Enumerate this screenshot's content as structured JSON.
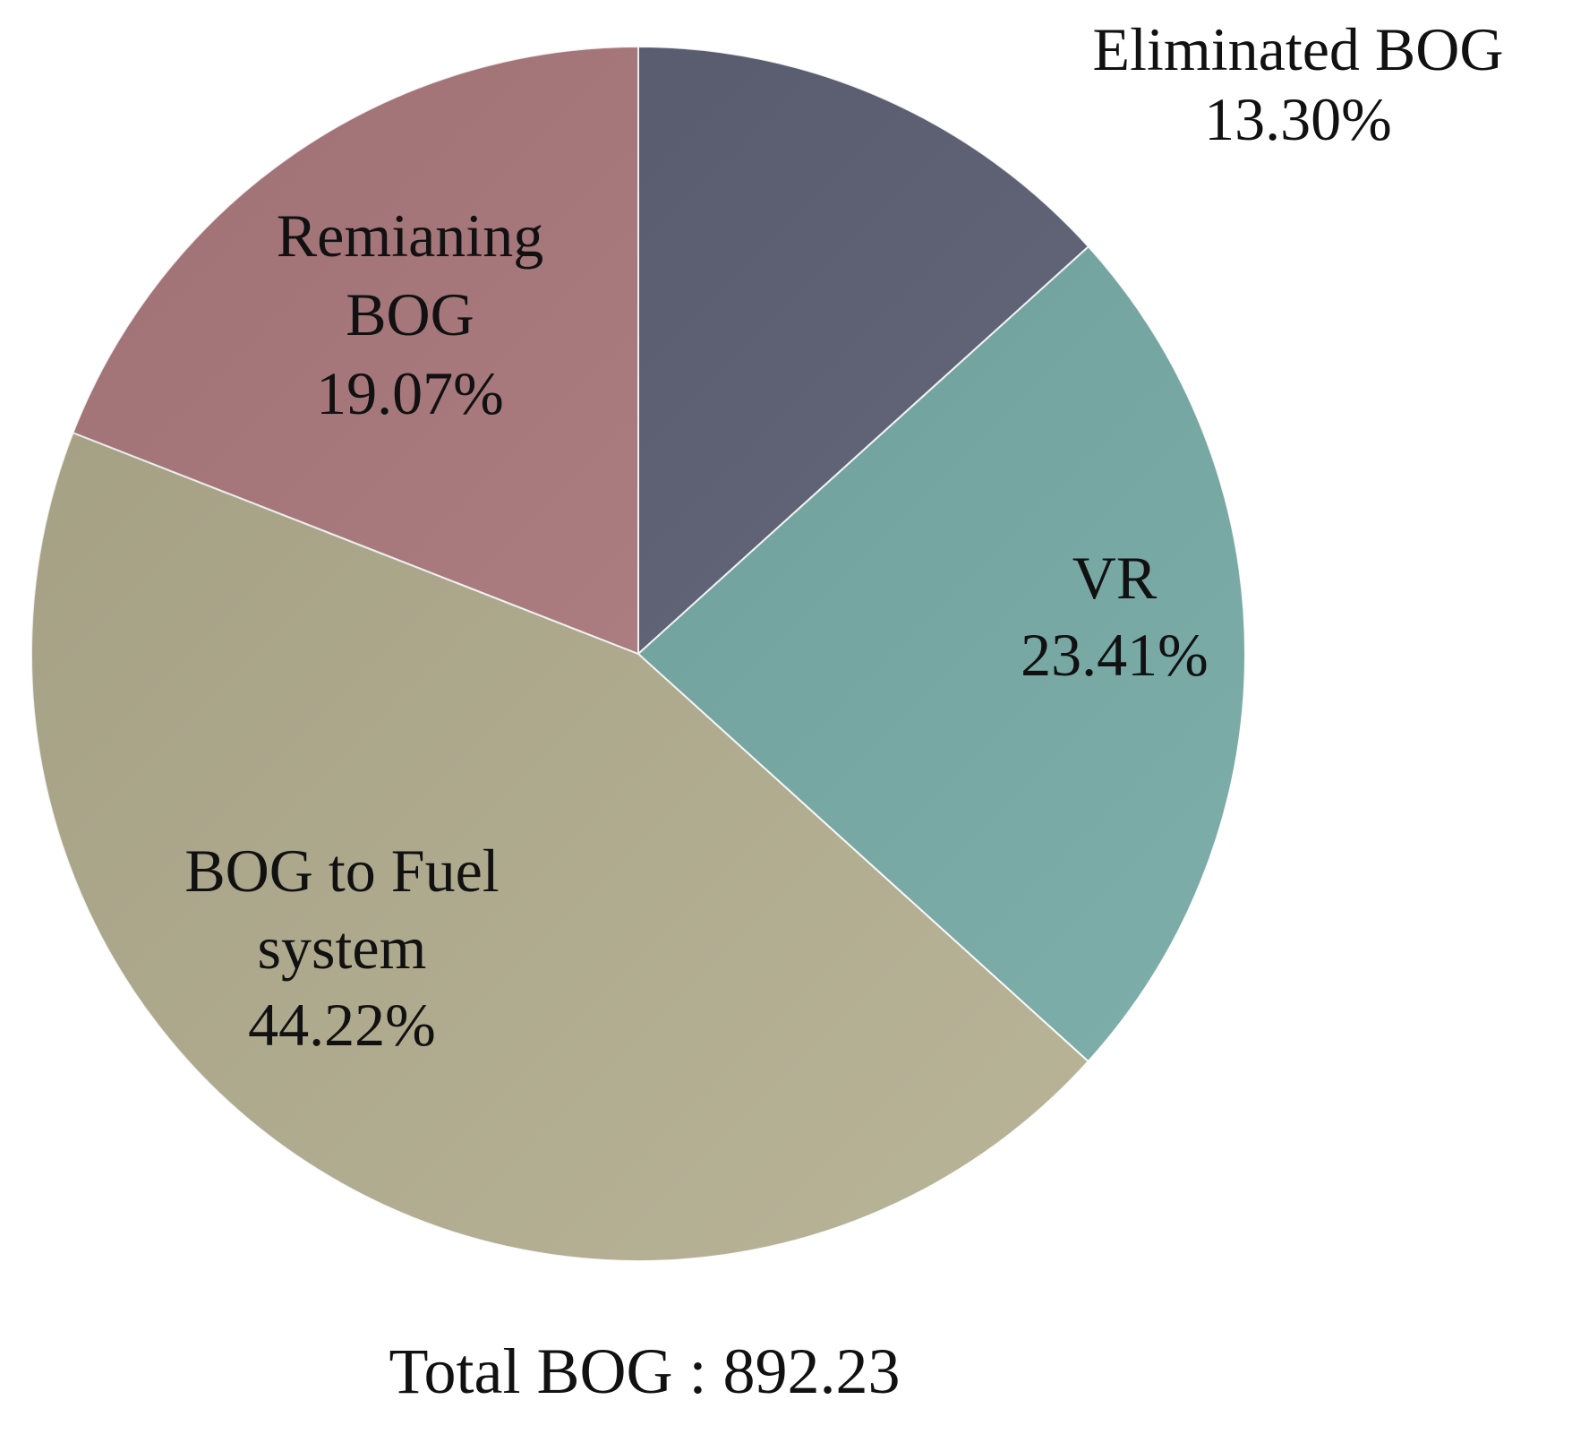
{
  "chart_data": {
    "type": "pie",
    "start_angle_deg": 0,
    "direction": "clockwise",
    "slices": [
      {
        "name": "Eliminated BOG",
        "label_lines": [
          "Eliminated BOG",
          "13.30%"
        ],
        "value": 13.3,
        "color": "#5c5f74"
      },
      {
        "name": "VR",
        "label_lines": [
          "VR",
          "23.41%"
        ],
        "value": 23.41,
        "color": "#72a8a3"
      },
      {
        "name": "BOG to Fuel system",
        "label_lines": [
          "BOG to Fuel",
          "system",
          "44.22%"
        ],
        "value": 44.22,
        "color": "#b3ae8f"
      },
      {
        "name": "Remianing BOG",
        "label_lines": [
          "Remianing",
          "BOG",
          "19.07%"
        ],
        "value": 19.07,
        "color": "#b07c80"
      }
    ],
    "footer": "Total BOG : 892.23"
  }
}
